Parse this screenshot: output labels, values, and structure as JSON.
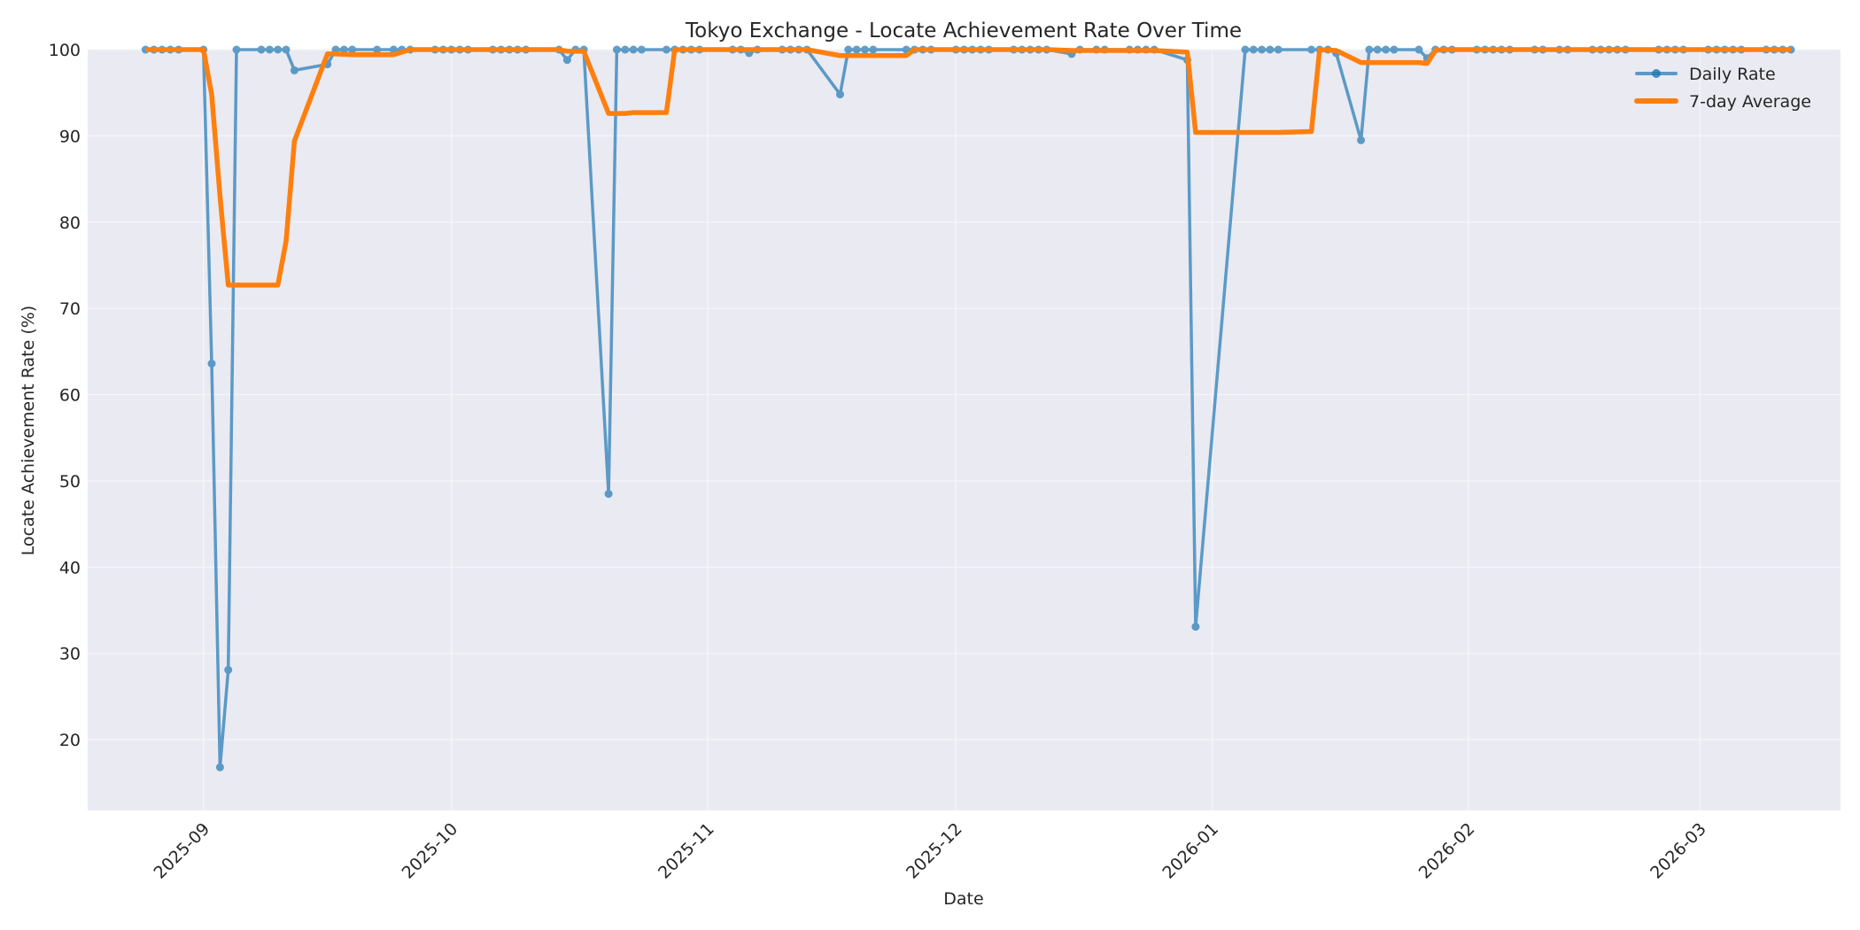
{
  "chart_data": {
    "type": "line",
    "title": "Tokyo Exchange - Locate Achievement Rate Over Time",
    "xlabel": "Date",
    "ylabel": "Locate Achievement Rate (%)",
    "ylim": [
      11.8,
      100
    ],
    "xlim": [
      "2025-08-18",
      "2026-03-18"
    ],
    "grid": true,
    "legend_position": "upper right",
    "x_ticks": [
      "2025-09",
      "2025-10",
      "2025-11",
      "2025-12",
      "2026-01",
      "2026-02",
      "2026-03"
    ],
    "x_tick_dates": [
      "2025-09-01",
      "2025-10-01",
      "2025-11-01",
      "2025-12-01",
      "2026-01-01",
      "2026-02-01",
      "2026-03-01"
    ],
    "y_ticks": [
      20,
      30,
      40,
      50,
      60,
      70,
      80,
      90,
      100
    ],
    "series": [
      {
        "name": "Daily Rate",
        "color": "#1f77b4",
        "marker": "circle",
        "points": [
          [
            "2025-08-25",
            100
          ],
          [
            "2025-08-26",
            100
          ],
          [
            "2025-08-27",
            100
          ],
          [
            "2025-08-28",
            100
          ],
          [
            "2025-08-29",
            100
          ],
          [
            "2025-09-01",
            100
          ],
          [
            "2025-09-02",
            63.6
          ],
          [
            "2025-09-03",
            16.8
          ],
          [
            "2025-09-04",
            28.1
          ],
          [
            "2025-09-05",
            100
          ],
          [
            "2025-09-08",
            100
          ],
          [
            "2025-09-09",
            100
          ],
          [
            "2025-09-10",
            100
          ],
          [
            "2025-09-11",
            100
          ],
          [
            "2025-09-12",
            97.6
          ],
          [
            "2025-09-16",
            98.3
          ],
          [
            "2025-09-17",
            100
          ],
          [
            "2025-09-18",
            100
          ],
          [
            "2025-09-19",
            100
          ],
          [
            "2025-09-22",
            100
          ],
          [
            "2025-09-24",
            100
          ],
          [
            "2025-09-25",
            100
          ],
          [
            "2025-09-26",
            100
          ],
          [
            "2025-09-29",
            100
          ],
          [
            "2025-09-30",
            100
          ],
          [
            "2025-10-01",
            100
          ],
          [
            "2025-10-02",
            100
          ],
          [
            "2025-10-03",
            100
          ],
          [
            "2025-10-06",
            100
          ],
          [
            "2025-10-07",
            100
          ],
          [
            "2025-10-08",
            100
          ],
          [
            "2025-10-09",
            100
          ],
          [
            "2025-10-10",
            100
          ],
          [
            "2025-10-14",
            100
          ],
          [
            "2025-10-15",
            98.8
          ],
          [
            "2025-10-16",
            100
          ],
          [
            "2025-10-17",
            100
          ],
          [
            "2025-10-20",
            48.5
          ],
          [
            "2025-10-21",
            100
          ],
          [
            "2025-10-22",
            100
          ],
          [
            "2025-10-23",
            100
          ],
          [
            "2025-10-24",
            100
          ],
          [
            "2025-10-27",
            100
          ],
          [
            "2025-10-28",
            100
          ],
          [
            "2025-10-29",
            100
          ],
          [
            "2025-10-30",
            100
          ],
          [
            "2025-10-31",
            100
          ],
          [
            "2025-11-04",
            100
          ],
          [
            "2025-11-05",
            100
          ],
          [
            "2025-11-06",
            99.6
          ],
          [
            "2025-11-07",
            100
          ],
          [
            "2025-11-10",
            100
          ],
          [
            "2025-11-11",
            100
          ],
          [
            "2025-11-12",
            100
          ],
          [
            "2025-11-13",
            100
          ],
          [
            "2025-11-17",
            94.8
          ],
          [
            "2025-11-18",
            100
          ],
          [
            "2025-11-19",
            100
          ],
          [
            "2025-11-20",
            100
          ],
          [
            "2025-11-21",
            100
          ],
          [
            "2025-11-25",
            100
          ],
          [
            "2025-11-26",
            100
          ],
          [
            "2025-11-27",
            100
          ],
          [
            "2025-11-28",
            100
          ],
          [
            "2025-12-01",
            100
          ],
          [
            "2025-12-02",
            100
          ],
          [
            "2025-12-03",
            100
          ],
          [
            "2025-12-04",
            100
          ],
          [
            "2025-12-05",
            100
          ],
          [
            "2025-12-08",
            100
          ],
          [
            "2025-12-09",
            100
          ],
          [
            "2025-12-10",
            100
          ],
          [
            "2025-12-11",
            100
          ],
          [
            "2025-12-12",
            100
          ],
          [
            "2025-12-15",
            99.5
          ],
          [
            "2025-12-16",
            100
          ],
          [
            "2025-12-18",
            100
          ],
          [
            "2025-12-19",
            100
          ],
          [
            "2025-12-22",
            100
          ],
          [
            "2025-12-23",
            100
          ],
          [
            "2025-12-24",
            100
          ],
          [
            "2025-12-25",
            100
          ],
          [
            "2025-12-29",
            98.8
          ],
          [
            "2025-12-30",
            33.1
          ],
          [
            "2026-01-05",
            100
          ],
          [
            "2026-01-06",
            100
          ],
          [
            "2026-01-07",
            100
          ],
          [
            "2026-01-08",
            100
          ],
          [
            "2026-01-09",
            100
          ],
          [
            "2026-01-13",
            100
          ],
          [
            "2026-01-14",
            100
          ],
          [
            "2026-01-15",
            100
          ],
          [
            "2026-01-16",
            99.6
          ],
          [
            "2026-01-19",
            89.5
          ],
          [
            "2026-01-20",
            100
          ],
          [
            "2026-01-21",
            100
          ],
          [
            "2026-01-22",
            100
          ],
          [
            "2026-01-23",
            100
          ],
          [
            "2026-01-26",
            100
          ],
          [
            "2026-01-27",
            99.0
          ],
          [
            "2026-01-28",
            100
          ],
          [
            "2026-01-29",
            100
          ],
          [
            "2026-01-30",
            100
          ],
          [
            "2026-02-02",
            100
          ],
          [
            "2026-02-03",
            100
          ],
          [
            "2026-02-04",
            100
          ],
          [
            "2026-02-05",
            100
          ],
          [
            "2026-02-06",
            100
          ],
          [
            "2026-02-09",
            100
          ],
          [
            "2026-02-10",
            100
          ],
          [
            "2026-02-12",
            100
          ],
          [
            "2026-02-13",
            100
          ],
          [
            "2026-02-16",
            100
          ],
          [
            "2026-02-17",
            100
          ],
          [
            "2026-02-18",
            100
          ],
          [
            "2026-02-19",
            100
          ],
          [
            "2026-02-20",
            100
          ],
          [
            "2026-02-24",
            100
          ],
          [
            "2026-02-25",
            100
          ],
          [
            "2026-02-26",
            100
          ],
          [
            "2026-02-27",
            100
          ],
          [
            "2026-03-02",
            100
          ],
          [
            "2026-03-03",
            100
          ],
          [
            "2026-03-04",
            100
          ],
          [
            "2026-03-05",
            100
          ],
          [
            "2026-03-06",
            100
          ],
          [
            "2026-03-09",
            100
          ],
          [
            "2026-03-10",
            100
          ],
          [
            "2026-03-11",
            100
          ],
          [
            "2026-03-12",
            100
          ]
        ]
      },
      {
        "name": "7-day Average",
        "color": "#ff7f0e",
        "marker": "none",
        "points": [
          [
            "2025-08-25",
            100
          ],
          [
            "2025-08-29",
            100
          ],
          [
            "2025-09-01",
            100
          ],
          [
            "2025-09-02",
            94.8
          ],
          [
            "2025-09-03",
            83.0
          ],
          [
            "2025-09-04",
            72.7
          ],
          [
            "2025-09-05",
            72.7
          ],
          [
            "2025-09-08",
            72.7
          ],
          [
            "2025-09-10",
            72.7
          ],
          [
            "2025-09-11",
            77.8
          ],
          [
            "2025-09-12",
            89.4
          ],
          [
            "2025-09-16",
            99.5
          ],
          [
            "2025-09-17",
            99.5
          ],
          [
            "2025-09-19",
            99.4
          ],
          [
            "2025-09-24",
            99.4
          ],
          [
            "2025-09-26",
            100
          ],
          [
            "2025-10-14",
            100
          ],
          [
            "2025-10-15",
            99.8
          ],
          [
            "2025-10-17",
            99.8
          ],
          [
            "2025-10-20",
            92.6
          ],
          [
            "2025-10-22",
            92.6
          ],
          [
            "2025-10-23",
            92.7
          ],
          [
            "2025-10-27",
            92.7
          ],
          [
            "2025-10-28",
            100
          ],
          [
            "2025-11-13",
            100
          ],
          [
            "2025-11-17",
            99.3
          ],
          [
            "2025-11-20",
            99.3
          ],
          [
            "2025-11-25",
            99.3
          ],
          [
            "2025-11-26",
            100
          ],
          [
            "2025-12-12",
            100
          ],
          [
            "2025-12-15",
            99.9
          ],
          [
            "2025-12-16",
            99.9
          ],
          [
            "2025-12-25",
            99.9
          ],
          [
            "2025-12-29",
            99.7
          ],
          [
            "2025-12-30",
            90.4
          ],
          [
            "2026-01-05",
            90.4
          ],
          [
            "2026-01-09",
            90.4
          ],
          [
            "2026-01-13",
            90.5
          ],
          [
            "2026-01-14",
            100
          ],
          [
            "2026-01-16",
            99.9
          ],
          [
            "2026-01-19",
            98.5
          ],
          [
            "2026-01-20",
            98.5
          ],
          [
            "2026-01-23",
            98.5
          ],
          [
            "2026-01-26",
            98.5
          ],
          [
            "2026-01-27",
            98.4
          ],
          [
            "2026-01-28",
            99.9
          ],
          [
            "2026-01-29",
            100
          ],
          [
            "2026-03-12",
            100
          ]
        ]
      }
    ]
  },
  "legend": {
    "items": [
      {
        "label": "Daily Rate",
        "color": "#1f77b4"
      },
      {
        "label": "7-day Average",
        "color": "#ff7f0e"
      }
    ]
  },
  "style": {
    "plot_bg": "#eaeaf2",
    "grid_color": "#f6f6fa",
    "text_color": "#262626"
  }
}
